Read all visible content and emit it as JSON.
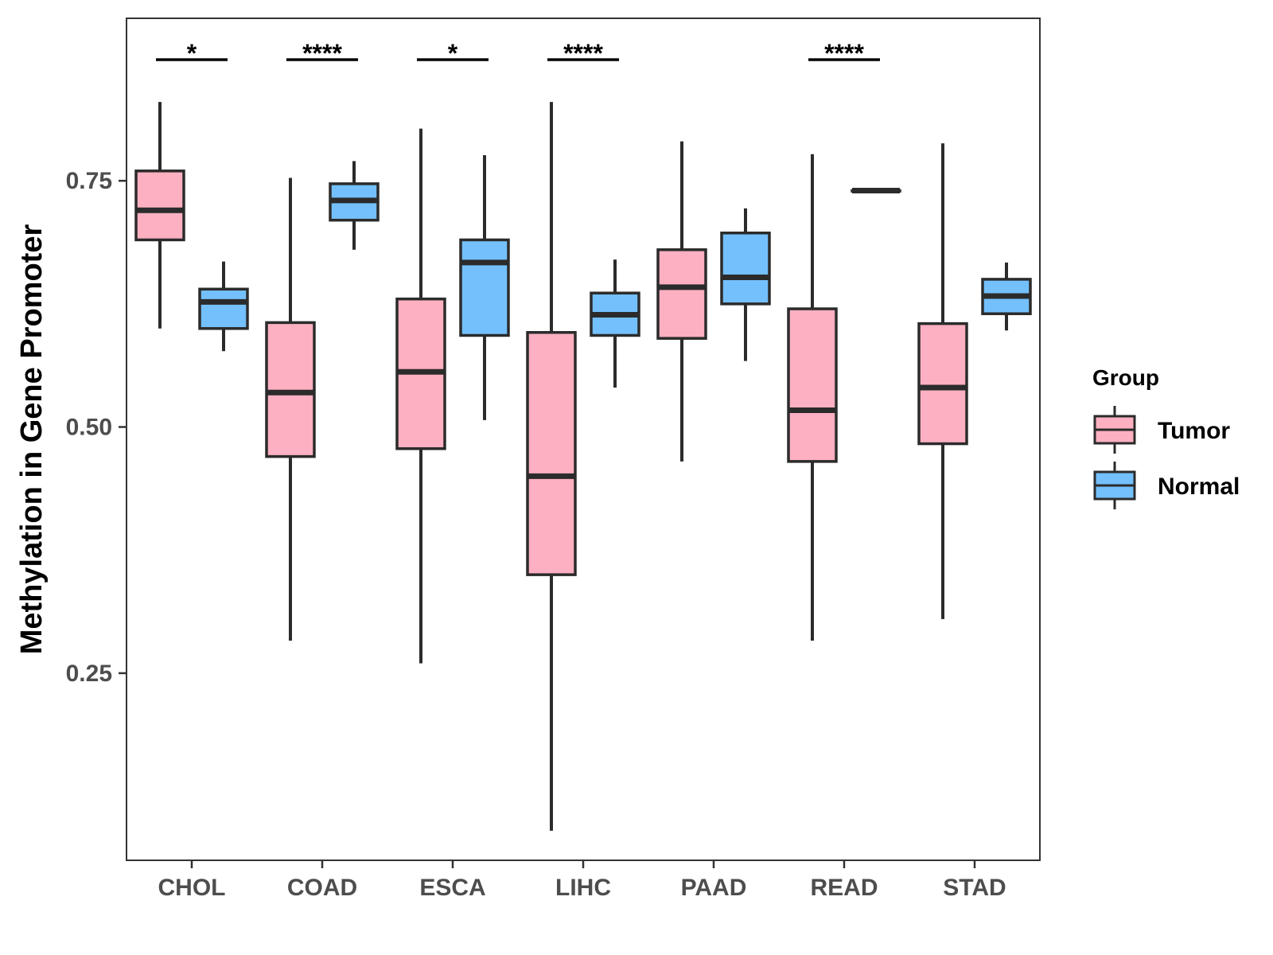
{
  "chart_data": {
    "type": "boxplot",
    "title": "",
    "xlabel": "",
    "ylabel": "Methylation in Gene Promoter",
    "ylim": [
      0.06,
      0.915
    ],
    "yticks": [
      0.25,
      0.5,
      0.75
    ],
    "ytick_labels": [
      "0.25",
      "0.50",
      "0.75"
    ],
    "grid": false,
    "categories": [
      "CHOL",
      "COAD",
      "ESCA",
      "LIHC",
      "PAAD",
      "READ",
      "STAD"
    ],
    "legend": {
      "title": "Group",
      "position": "right",
      "entries": [
        "Tumor",
        "Normal"
      ]
    },
    "series": [
      {
        "name": "Tumor",
        "color": "#FDB0C1",
        "boxes": [
          {
            "min": 0.6,
            "q1": 0.69,
            "median": 0.72,
            "q3": 0.76,
            "max": 0.83
          },
          {
            "min": 0.283,
            "q1": 0.47,
            "median": 0.535,
            "q3": 0.606,
            "max": 0.753
          },
          {
            "min": 0.26,
            "q1": 0.478,
            "median": 0.556,
            "q3": 0.63,
            "max": 0.803
          },
          {
            "min": 0.09,
            "q1": 0.35,
            "median": 0.45,
            "q3": 0.596,
            "max": 0.83
          },
          {
            "min": 0.465,
            "q1": 0.59,
            "median": 0.642,
            "q3": 0.68,
            "max": 0.79
          },
          {
            "min": 0.283,
            "q1": 0.465,
            "median": 0.517,
            "q3": 0.62,
            "max": 0.777
          },
          {
            "min": 0.305,
            "q1": 0.483,
            "median": 0.54,
            "q3": 0.605,
            "max": 0.788
          }
        ]
      },
      {
        "name": "Normal",
        "color": "#74C0FC",
        "boxes": [
          {
            "min": 0.577,
            "q1": 0.6,
            "median": 0.627,
            "q3": 0.64,
            "max": 0.668
          },
          {
            "min": 0.68,
            "q1": 0.71,
            "median": 0.73,
            "q3": 0.747,
            "max": 0.77
          },
          {
            "min": 0.507,
            "q1": 0.593,
            "median": 0.667,
            "q3": 0.69,
            "max": 0.776
          },
          {
            "min": 0.54,
            "q1": 0.593,
            "median": 0.614,
            "q3": 0.636,
            "max": 0.67
          },
          {
            "min": 0.567,
            "q1": 0.625,
            "median": 0.652,
            "q3": 0.697,
            "max": 0.722
          },
          {
            "min": 0.74,
            "q1": 0.74,
            "median": 0.74,
            "q3": 0.74,
            "max": 0.74
          },
          {
            "min": 0.598,
            "q1": 0.615,
            "median": 0.633,
            "q3": 0.65,
            "max": 0.667
          }
        ]
      }
    ],
    "significance": [
      {
        "category": "CHOL",
        "label": "*"
      },
      {
        "category": "COAD",
        "label": "****"
      },
      {
        "category": "ESCA",
        "label": "*"
      },
      {
        "category": "LIHC",
        "label": "****"
      },
      {
        "category": "READ",
        "label": "****"
      }
    ]
  }
}
